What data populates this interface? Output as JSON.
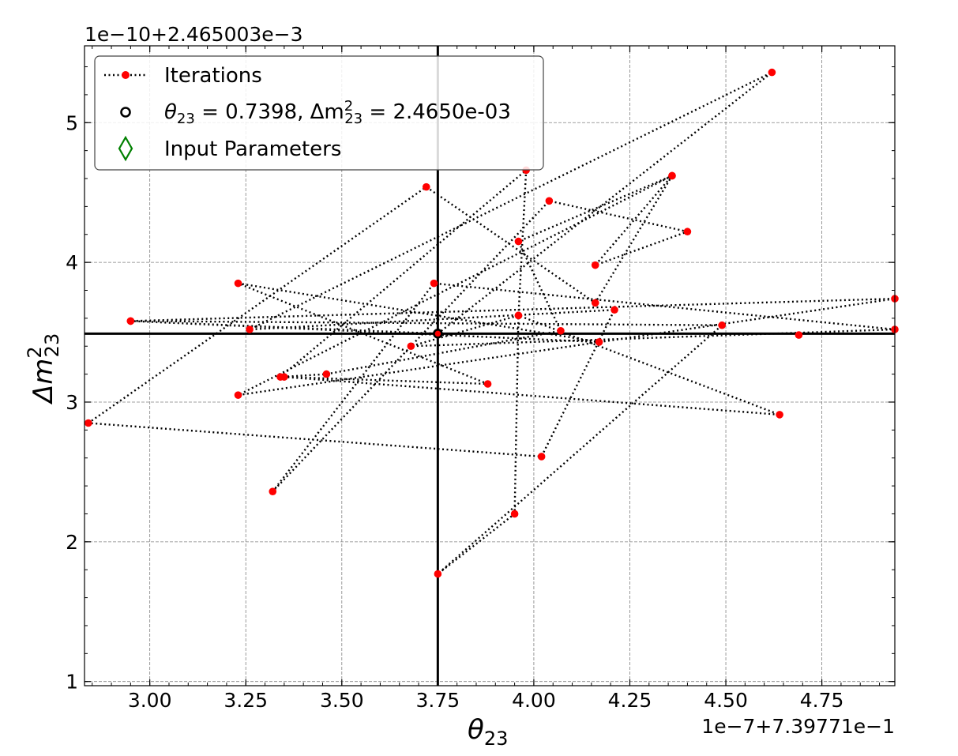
{
  "chart_data": {
    "type": "scatter",
    "xlabel": "θ",
    "xlabel_sub": "23",
    "ylabel": "Δm",
    "ylabel_sup": "2",
    "ylabel_sub": "23",
    "x_offset_text": "1e−7+7.39771e−1",
    "y_offset_text": "1e−10+2.465003e−3",
    "xlim": [
      2.83,
      4.94
    ],
    "ylim": [
      0.97,
      5.55
    ],
    "xticks": [
      3.0,
      3.25,
      3.5,
      3.75,
      4.0,
      4.25,
      4.5,
      4.75
    ],
    "xtick_labels": [
      "3.00",
      "3.25",
      "3.50",
      "3.75",
      "4.00",
      "4.25",
      "4.50",
      "4.75"
    ],
    "yticks": [
      1,
      2,
      3,
      4,
      5
    ],
    "ytick_labels": [
      "1",
      "2",
      "3",
      "4",
      "5"
    ],
    "grid": true,
    "legend_position": "top-left",
    "legend": [
      {
        "label": "Iterations",
        "marker": "red-dot-dotted-line"
      },
      {
        "label_pre": "θ",
        "label_sub": "23",
        "label_mid": " = 0.7398, Δm",
        "label_sup2": "2",
        "label_sub2": "23",
        "label_post": " = 2.4650e-03",
        "marker": "hollow-circle"
      },
      {
        "label": "Input Parameters",
        "marker": "green-diamond"
      }
    ],
    "colors": {
      "iterations": "#ff0000",
      "path": "#000000",
      "input": "#008000",
      "grid": "#808080"
    },
    "best_fit": {
      "x": 3.75,
      "y": 3.49
    },
    "series": [
      {
        "values_x": [
          3.75,
          4.62,
          3.26,
          4.21,
          4.02,
          2.84,
          3.72,
          4.16,
          4.36,
          3.96,
          4.07,
          3.46,
          3.34,
          3.98,
          3.96,
          3.95,
          3.75,
          4.49,
          2.95,
          4.94,
          3.23,
          4.36,
          4.16,
          4.4,
          4.04,
          3.32,
          3.74,
          4.94,
          3.68,
          3.96,
          4.64,
          3.35,
          3.88,
          3.23,
          4.17,
          2.95,
          3.75
        ],
        "values_y": [
          3.49,
          5.36,
          3.52,
          3.66,
          2.61,
          2.85,
          4.54,
          3.71,
          4.62,
          4.15,
          3.51,
          3.2,
          3.18,
          4.66,
          3.62,
          2.2,
          1.77,
          3.55,
          3.58,
          3.74,
          3.05,
          4.62,
          3.98,
          4.22,
          4.44,
          2.36,
          3.85,
          3.52,
          3.4,
          3.62,
          2.91,
          3.18,
          3.13,
          3.85,
          3.43,
          3.58,
          3.49
        ]
      }
    ],
    "scatter_only_points": [
      {
        "x": 4.69,
        "y": 3.48
      }
    ]
  }
}
